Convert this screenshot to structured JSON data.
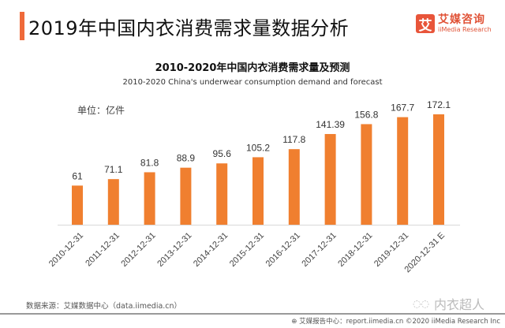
{
  "header": {
    "title": "2019年中国内衣消费需求量数据分析",
    "accent_color": "#ef6a3a"
  },
  "logo": {
    "mark": "艾",
    "name_cn": "艾媒咨询",
    "name_en": "iiMedia Research",
    "color": "#e8553a"
  },
  "unit_label": "单位：亿件",
  "source": "数据来源：艾媒数据中心（data.iimedia.cn）",
  "watermark": {
    "icon": "wechat-icon",
    "text": "内衣超人"
  },
  "footer": {
    "icon": "globe-icon",
    "text": "艾媒报告中心：report.iimedia.cn   ©2020  iiMedia Research Inc"
  },
  "chart_data": {
    "type": "bar",
    "title": "2010-2020年中国内衣消费需求量及预测",
    "subtitle": "2010-2020 China's underwear consumption demand and forecast",
    "xlabel": "",
    "ylabel": "单位：亿件",
    "categories": [
      "2010-12-31",
      "2011-12-31",
      "2012-12-31",
      "2013-12-31",
      "2014-12-31",
      "2015-12-31",
      "2016-12-31",
      "2017-12-31",
      "2018-12-31",
      "2019-12-31",
      "2020-12-31 E"
    ],
    "values": [
      61,
      71.1,
      81.8,
      88.9,
      95.6,
      105.2,
      117.8,
      141.39,
      156.8,
      167.7,
      172.1
    ],
    "value_labels": [
      "61",
      "71.1",
      "81.8",
      "88.9",
      "95.6",
      "105.2",
      "117.8",
      "141.39",
      "156.8",
      "167.7",
      "172.1"
    ],
    "ylim": [
      0,
      172.1
    ],
    "grid": false,
    "legend": "none",
    "bar_color": "#f07f2f",
    "axis_color": "#d9d9d9"
  }
}
